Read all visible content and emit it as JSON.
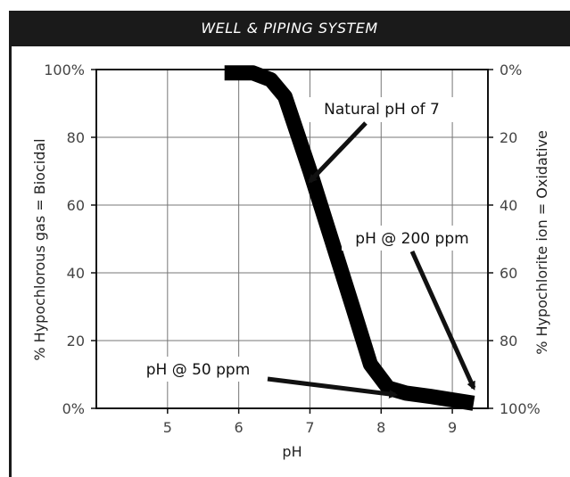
{
  "chart_data": {
    "type": "line",
    "title": "WELL & PIPING SYSTEM",
    "xlabel": "pH",
    "ylabel": "% Hypochlorous gas = Biocidal",
    "y2label": "% Hypochlorite ion = Oxidative",
    "xlim": [
      4,
      9.5
    ],
    "ylim": [
      0,
      100
    ],
    "x_ticks": [
      5,
      6,
      7,
      8,
      9
    ],
    "y_ticks": [
      0,
      20,
      40,
      60,
      80,
      100
    ],
    "y_tick_labels": [
      "0%",
      "20",
      "40",
      "60",
      "80",
      "100%"
    ],
    "y2_tick_labels": [
      "100%",
      "80",
      "60",
      "40",
      "20",
      "0%"
    ],
    "grid": true,
    "series": [
      {
        "x": [
          5.8,
          6.2,
          6.45,
          6.65,
          7.0,
          7.3,
          7.6,
          7.85,
          8.1,
          8.35,
          8.7,
          9.0,
          9.3
        ],
        "values": [
          99,
          99,
          97,
          92,
          70,
          50,
          30,
          13,
          6,
          4.5,
          3.5,
          2.5,
          1.5
        ]
      }
    ],
    "annotations": [
      {
        "text": "Natural pH of 7",
        "arrow_to": {
          "x": 7.0,
          "y": 67
        }
      },
      {
        "text": "pH @ 200 ppm",
        "arrow_to": {
          "x": 9.3,
          "y": 6
        }
      },
      {
        "text": "pH @ 50 ppm",
        "arrow_to": {
          "x": 8.2,
          "y": 4
        }
      }
    ]
  }
}
